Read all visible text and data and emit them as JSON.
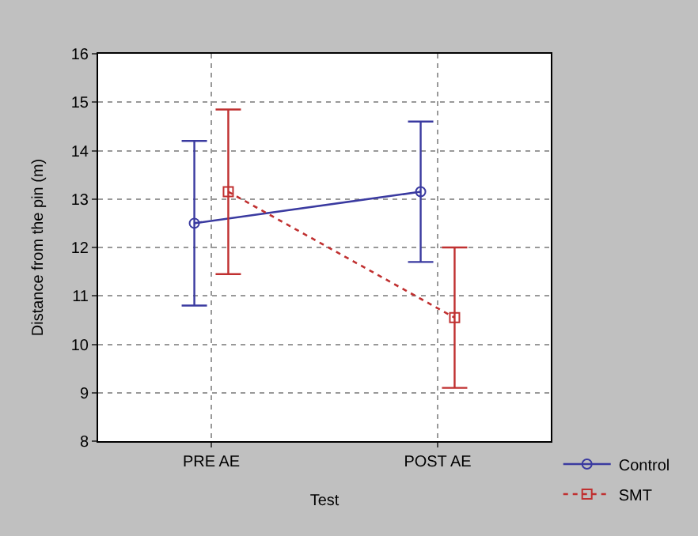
{
  "chart_data": {
    "type": "line",
    "xlabel": "Test",
    "ylabel": "Distance from the pin (m)",
    "categories": [
      "PRE AE",
      "POST AE"
    ],
    "series": [
      {
        "name": "Control",
        "color": "#3a3aa0",
        "values": [
          12.5,
          13.15
        ],
        "errors": [
          [
            10.8,
            14.2
          ],
          [
            11.7,
            14.6
          ]
        ],
        "marker": "circle",
        "line_style": "solid"
      },
      {
        "name": "SMT",
        "color": "#c03030",
        "values": [
          13.15,
          10.55
        ],
        "errors": [
          [
            11.45,
            14.85
          ],
          [
            9.1,
            12.0
          ]
        ],
        "marker": "square",
        "line_style": "dotted"
      }
    ],
    "ylim": [
      8,
      16
    ],
    "yticks": [
      8,
      9,
      10,
      11,
      12,
      13,
      14,
      15,
      16
    ],
    "grid": true,
    "legend": "bottom right"
  }
}
